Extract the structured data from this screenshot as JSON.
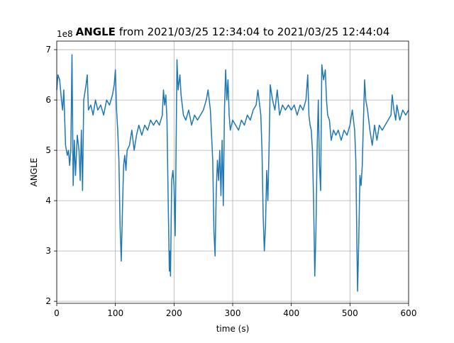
{
  "chart_data": {
    "type": "line",
    "title_name": "ANGLE",
    "title": "from 2021/03/25 12:34:04 to 2021/03/25 12:44:04",
    "x_label": "time (s)",
    "y_label": "ANGLE",
    "y_offset_label": "1e8",
    "color": "#1f77b4",
    "grid": true,
    "xlim": [
      0,
      600
    ],
    "ylim": [
      1.96,
      7.17
    ],
    "xticks": [
      0,
      100,
      200,
      300,
      400,
      500,
      600
    ],
    "yticks": [
      2,
      3,
      4,
      5,
      6,
      7
    ],
    "x": [
      0,
      2,
      5,
      8,
      10,
      12,
      15,
      18,
      20,
      22,
      24,
      26,
      28,
      30,
      32,
      35,
      38,
      40,
      42,
      44,
      46,
      50,
      52,
      54,
      58,
      62,
      66,
      70,
      75,
      80,
      85,
      90,
      95,
      98,
      100,
      102,
      104,
      106,
      108,
      110,
      112,
      114,
      116,
      118,
      120,
      124,
      128,
      132,
      136,
      140,
      145,
      150,
      155,
      160,
      165,
      170,
      175,
      180,
      182,
      184,
      186,
      188,
      190,
      192,
      193,
      194,
      196,
      198,
      200,
      202,
      205,
      207,
      210,
      212,
      216,
      220,
      225,
      230,
      235,
      240,
      245,
      250,
      255,
      258,
      262,
      264,
      266,
      268,
      270,
      272,
      274,
      276,
      278,
      280,
      282,
      284,
      286,
      288,
      290,
      292,
      294,
      296,
      300,
      305,
      310,
      315,
      320,
      325,
      330,
      335,
      340,
      343,
      345,
      348,
      350,
      352,
      354,
      356,
      358,
      360,
      362,
      364,
      368,
      372,
      376,
      380,
      385,
      390,
      395,
      400,
      405,
      410,
      415,
      420,
      425,
      428,
      430,
      432,
      434,
      436,
      438,
      440,
      442,
      444,
      446,
      448,
      450,
      452,
      455,
      458,
      460,
      462,
      465,
      468,
      472,
      476,
      480,
      485,
      490,
      495,
      500,
      504,
      506,
      508,
      510,
      512,
      513,
      515,
      517,
      519,
      521,
      523,
      525,
      527,
      530,
      534,
      538,
      542,
      546,
      550,
      555,
      560,
      565,
      570,
      572,
      575,
      578,
      580,
      585,
      590,
      595,
      600
    ],
    "values": [
      6.2,
      6.5,
      6.4,
      6.0,
      5.8,
      6.2,
      5.1,
      4.9,
      5.0,
      4.7,
      5.0,
      6.9,
      4.3,
      5.2,
      4.5,
      5.3,
      5.0,
      4.4,
      5.4,
      4.2,
      6.0,
      6.3,
      6.5,
      5.8,
      5.9,
      5.7,
      6.0,
      5.8,
      5.9,
      5.7,
      6.0,
      5.9,
      6.1,
      6.3,
      6.6,
      5.8,
      5.4,
      4.8,
      3.5,
      2.8,
      3.8,
      4.7,
      4.9,
      4.6,
      5.0,
      5.1,
      5.4,
      5.0,
      5.3,
      5.5,
      5.3,
      5.5,
      5.4,
      5.6,
      5.5,
      5.6,
      5.5,
      5.7,
      6.2,
      5.9,
      6.1,
      5.6,
      4.0,
      2.6,
      3.0,
      2.5,
      4.4,
      4.6,
      4.3,
      3.3,
      6.8,
      6.2,
      6.5,
      6.1,
      5.7,
      5.6,
      5.8,
      5.5,
      5.7,
      5.6,
      5.7,
      5.8,
      6.0,
      6.2,
      5.8,
      5.3,
      4.8,
      3.4,
      2.9,
      4.2,
      4.8,
      4.4,
      5.0,
      4.1,
      5.2,
      3.9,
      5.8,
      6.6,
      6.0,
      6.4,
      5.7,
      5.4,
      5.6,
      5.5,
      5.4,
      5.6,
      5.5,
      5.7,
      5.6,
      5.8,
      5.9,
      6.2,
      6.0,
      5.7,
      5.0,
      3.7,
      3.0,
      3.5,
      4.6,
      4.0,
      5.0,
      6.3,
      6.0,
      5.8,
      6.2,
      5.7,
      5.9,
      5.8,
      5.9,
      5.8,
      5.9,
      5.7,
      5.9,
      5.8,
      6.0,
      6.5,
      5.7,
      5.5,
      5.4,
      5.0,
      4.0,
      2.5,
      3.4,
      5.0,
      6.0,
      4.7,
      4.2,
      6.7,
      6.4,
      6.6,
      6.0,
      5.7,
      5.6,
      5.2,
      5.4,
      5.3,
      5.4,
      5.2,
      5.4,
      5.3,
      5.5,
      5.8,
      5.6,
      5.4,
      4.8,
      3.0,
      2.2,
      3.2,
      4.5,
      4.3,
      4.7,
      5.6,
      6.4,
      6.0,
      5.8,
      5.4,
      5.1,
      5.5,
      5.2,
      5.5,
      5.4,
      5.5,
      5.6,
      5.7,
      6.1,
      5.8,
      5.6,
      5.9,
      5.6,
      5.8,
      5.7,
      5.8
    ]
  }
}
